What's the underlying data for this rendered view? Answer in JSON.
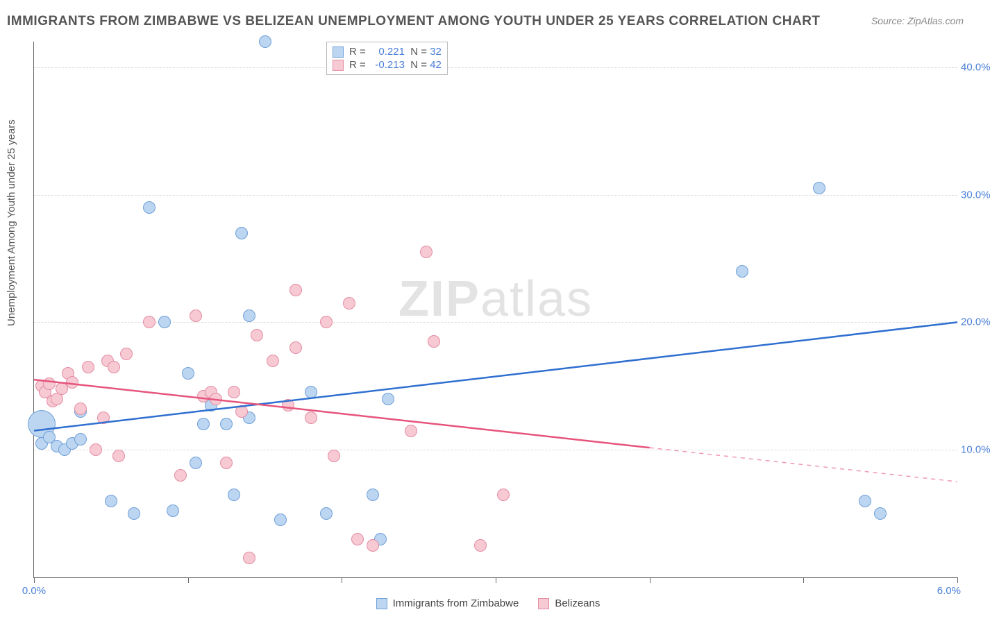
{
  "title": "IMMIGRANTS FROM ZIMBABWE VS BELIZEAN UNEMPLOYMENT AMONG YOUTH UNDER 25 YEARS CORRELATION CHART",
  "source": "Source: ZipAtlas.com",
  "ylabel": "Unemployment Among Youth under 25 years",
  "watermark_a": "ZIP",
  "watermark_b": "atlas",
  "chart": {
    "type": "scatter",
    "xlim": [
      0.0,
      6.0
    ],
    "ylim": [
      0.0,
      42.0
    ],
    "x_tick_positions": [
      0.0,
      1.0,
      2.0,
      3.0,
      4.0,
      5.0,
      6.0
    ],
    "x_tick_label_left": "0.0%",
    "x_tick_label_right": "6.0%",
    "y_grid": [
      10.0,
      20.0,
      30.0,
      40.0
    ],
    "y_tick_labels": [
      "10.0%",
      "20.0%",
      "30.0%",
      "40.0%"
    ],
    "ytick_color": "#4a7fd8",
    "xtick_color": "#4a7fd8",
    "background_color": "#ffffff",
    "grid_color": "#dddddd",
    "series": [
      {
        "name": "Immigrants from Zimbabwe",
        "fill": "#bcd5f0",
        "stroke": "#6fa0d9",
        "line_color": "#2f6fd0",
        "R": "0.221",
        "N": "32",
        "marker_radius": 9,
        "trend": {
          "x1": 0.0,
          "y1": 11.5,
          "x2": 6.0,
          "y2": 20.0,
          "dashed_from_x": null
        },
        "points": [
          {
            "x": 0.05,
            "y": 12.0,
            "r": 20
          },
          {
            "x": 0.05,
            "y": 10.5
          },
          {
            "x": 0.1,
            "y": 11.0
          },
          {
            "x": 0.15,
            "y": 10.3
          },
          {
            "x": 0.2,
            "y": 10.0
          },
          {
            "x": 0.25,
            "y": 10.5
          },
          {
            "x": 0.3,
            "y": 10.8
          },
          {
            "x": 0.3,
            "y": 13.0
          },
          {
            "x": 0.5,
            "y": 6.0
          },
          {
            "x": 0.65,
            "y": 5.0
          },
          {
            "x": 0.75,
            "y": 29.0
          },
          {
            "x": 0.85,
            "y": 20.0
          },
          {
            "x": 0.9,
            "y": 5.2
          },
          {
            "x": 1.0,
            "y": 16.0
          },
          {
            "x": 1.05,
            "y": 9.0
          },
          {
            "x": 1.1,
            "y": 12.0
          },
          {
            "x": 1.15,
            "y": 13.5
          },
          {
            "x": 1.25,
            "y": 12.0
          },
          {
            "x": 1.3,
            "y": 6.5
          },
          {
            "x": 1.35,
            "y": 27.0
          },
          {
            "x": 1.4,
            "y": 12.5
          },
          {
            "x": 1.4,
            "y": 20.5
          },
          {
            "x": 1.5,
            "y": 42.0
          },
          {
            "x": 1.6,
            "y": 4.5
          },
          {
            "x": 1.8,
            "y": 14.5
          },
          {
            "x": 1.9,
            "y": 5.0
          },
          {
            "x": 2.2,
            "y": 6.5
          },
          {
            "x": 2.25,
            "y": 3.0
          },
          {
            "x": 2.3,
            "y": 14.0
          },
          {
            "x": 4.6,
            "y": 24.0
          },
          {
            "x": 5.1,
            "y": 30.5
          },
          {
            "x": 5.4,
            "y": 6.0
          },
          {
            "x": 5.5,
            "y": 5.0
          }
        ]
      },
      {
        "name": "Belizeans",
        "fill": "#f6c9d3",
        "stroke": "#e48ba3",
        "line_color": "#e6547c",
        "R": "-0.213",
        "N": "42",
        "marker_radius": 9,
        "trend": {
          "x1": 0.0,
          "y1": 15.5,
          "x2": 6.0,
          "y2": 7.5,
          "dashed_from_x": 4.0
        },
        "points": [
          {
            "x": 0.05,
            "y": 15.0
          },
          {
            "x": 0.07,
            "y": 14.5
          },
          {
            "x": 0.1,
            "y": 15.2
          },
          {
            "x": 0.12,
            "y": 13.8
          },
          {
            "x": 0.15,
            "y": 14.0
          },
          {
            "x": 0.18,
            "y": 14.8
          },
          {
            "x": 0.22,
            "y": 16.0
          },
          {
            "x": 0.25,
            "y": 15.3
          },
          {
            "x": 0.3,
            "y": 13.2
          },
          {
            "x": 0.35,
            "y": 16.5
          },
          {
            "x": 0.4,
            "y": 10.0
          },
          {
            "x": 0.45,
            "y": 12.5
          },
          {
            "x": 0.48,
            "y": 17.0
          },
          {
            "x": 0.52,
            "y": 16.5
          },
          {
            "x": 0.55,
            "y": 9.5
          },
          {
            "x": 0.6,
            "y": 17.5
          },
          {
            "x": 0.75,
            "y": 20.0
          },
          {
            "x": 0.95,
            "y": 8.0
          },
          {
            "x": 1.05,
            "y": 20.5
          },
          {
            "x": 1.1,
            "y": 14.2
          },
          {
            "x": 1.15,
            "y": 14.5
          },
          {
            "x": 1.18,
            "y": 14.0
          },
          {
            "x": 1.25,
            "y": 9.0
          },
          {
            "x": 1.3,
            "y": 14.5
          },
          {
            "x": 1.35,
            "y": 13.0
          },
          {
            "x": 1.4,
            "y": 1.5
          },
          {
            "x": 1.45,
            "y": 19.0
          },
          {
            "x": 1.55,
            "y": 17.0
          },
          {
            "x": 1.65,
            "y": 13.5
          },
          {
            "x": 1.7,
            "y": 22.5
          },
          {
            "x": 1.7,
            "y": 18.0
          },
          {
            "x": 1.8,
            "y": 12.5
          },
          {
            "x": 1.9,
            "y": 20.0
          },
          {
            "x": 1.95,
            "y": 9.5
          },
          {
            "x": 2.05,
            "y": 21.5
          },
          {
            "x": 2.1,
            "y": 3.0
          },
          {
            "x": 2.2,
            "y": 2.5
          },
          {
            "x": 2.45,
            "y": 11.5
          },
          {
            "x": 2.55,
            "y": 25.5
          },
          {
            "x": 2.6,
            "y": 18.5
          },
          {
            "x": 3.05,
            "y": 6.5
          },
          {
            "x": 2.9,
            "y": 2.5
          }
        ]
      }
    ]
  },
  "top_legend_prefix_R": "R =",
  "top_legend_prefix_N": "N =",
  "bottom_legend": [
    "Immigrants from Zimbabwe",
    "Belizeans"
  ]
}
